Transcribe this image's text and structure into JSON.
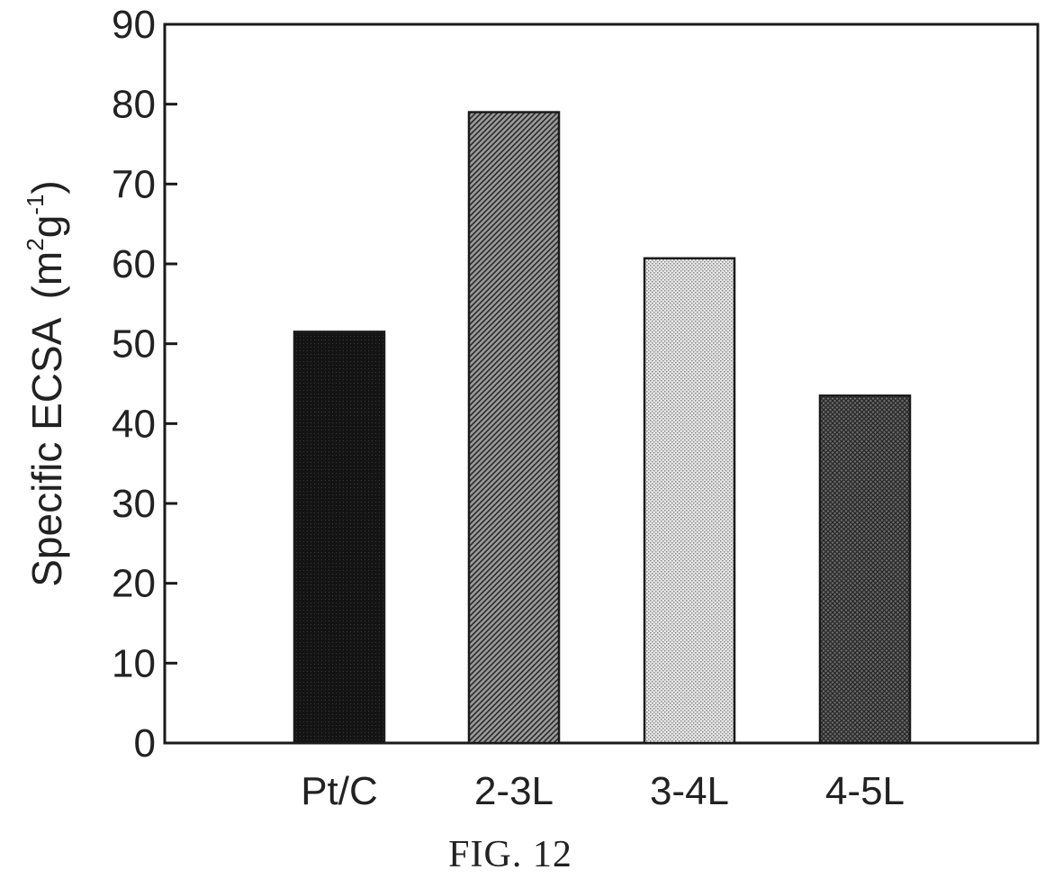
{
  "chart_data": {
    "type": "bar",
    "categories": [
      "Pt/C",
      "2-3L",
      "3-4L",
      "4-5L"
    ],
    "values": [
      51.5,
      79,
      60.7,
      43.5
    ],
    "ylabel_main": "Specific ECSA",
    "ylabel_unit_open": "(m",
    "ylabel_unit_sup1": "2",
    "ylabel_unit_mid": "g",
    "ylabel_unit_sup2": "-1",
    "ylabel_unit_close": ")",
    "ylim": [
      0,
      90
    ],
    "yticks": [
      "0",
      "10",
      "20",
      "30",
      "40",
      "50",
      "60",
      "70",
      "80",
      "90"
    ],
    "grid": false,
    "bar_styles": [
      "solid-black",
      "diagonal-hatch",
      "light-dots",
      "dark-crosshatch"
    ],
    "bar_colors": [
      "#111111",
      "#777777",
      "#d0d0d0",
      "#555555"
    ]
  },
  "caption": "FIG. 12"
}
